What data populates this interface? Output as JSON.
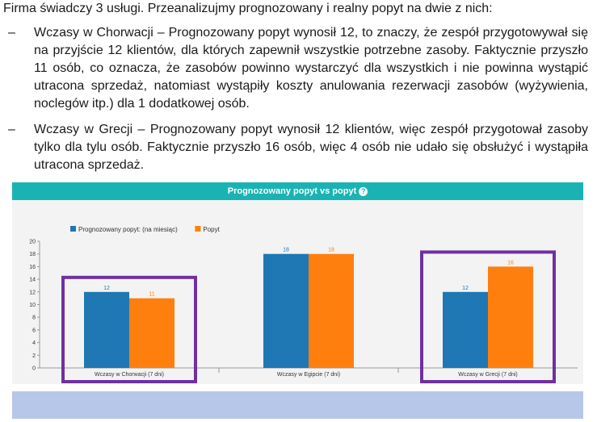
{
  "intro": "Firma świadczy 3 usługi. Przeanalizujmy prognozowany i realny popyt na dwie z nich:",
  "bullets": [
    {
      "dash": "–",
      "text": "Wczasy w Chorwacji – Prognozowany popyt wynosił 12, to znaczy, że zespół przygotowywał się na przyjście 12 klientów, dla których zapewnił wszystkie potrzebne zasoby. Faktycznie przyszło 11 osób, co oznacza, że zasobów powinno wystarczyć dla wszystkich i nie powinna wystąpić utracona sprzedaż, natomiast wystąpiły koszty anulowania rezerwacji zasobów (wyżywienia, noclegów itp.) dla 1 dodatkowej osób."
    },
    {
      "dash": "–",
      "text": "Wczasy w Grecji – Prognozowany popyt wynosił 12 klientów, więc zespół przygotował zasoby tylko dla tylu osób. Faktycznie przyszło 16 osób, więc 4 osób nie udało się obsłużyć i wystąpiła utracona sprzedaż."
    }
  ],
  "chart_header": "Prognozowany popyt vs popyt",
  "help_icon": "question-icon",
  "chart_data": {
    "type": "bar",
    "categories": [
      "Wczasy w Chorwacji (7 dni)",
      "Wczasy w Egipcie (7 dni)",
      "Wczasy w Grecji (7 dni)"
    ],
    "series": [
      {
        "name": "Prognozowany popyt: (na miesiąc)",
        "values": [
          12,
          18,
          12
        ],
        "color": "#1f77b4"
      },
      {
        "name": "Popyt",
        "values": [
          11,
          18,
          16
        ],
        "color": "#ff7f0e"
      }
    ],
    "ylim": [
      0,
      20
    ],
    "yticks": [
      0,
      2,
      4,
      6,
      8,
      10,
      12,
      14,
      16,
      18,
      20
    ],
    "legend": "top-left",
    "highlighted_categories": [
      0,
      2
    ],
    "highlight_color": "#7030a0"
  }
}
